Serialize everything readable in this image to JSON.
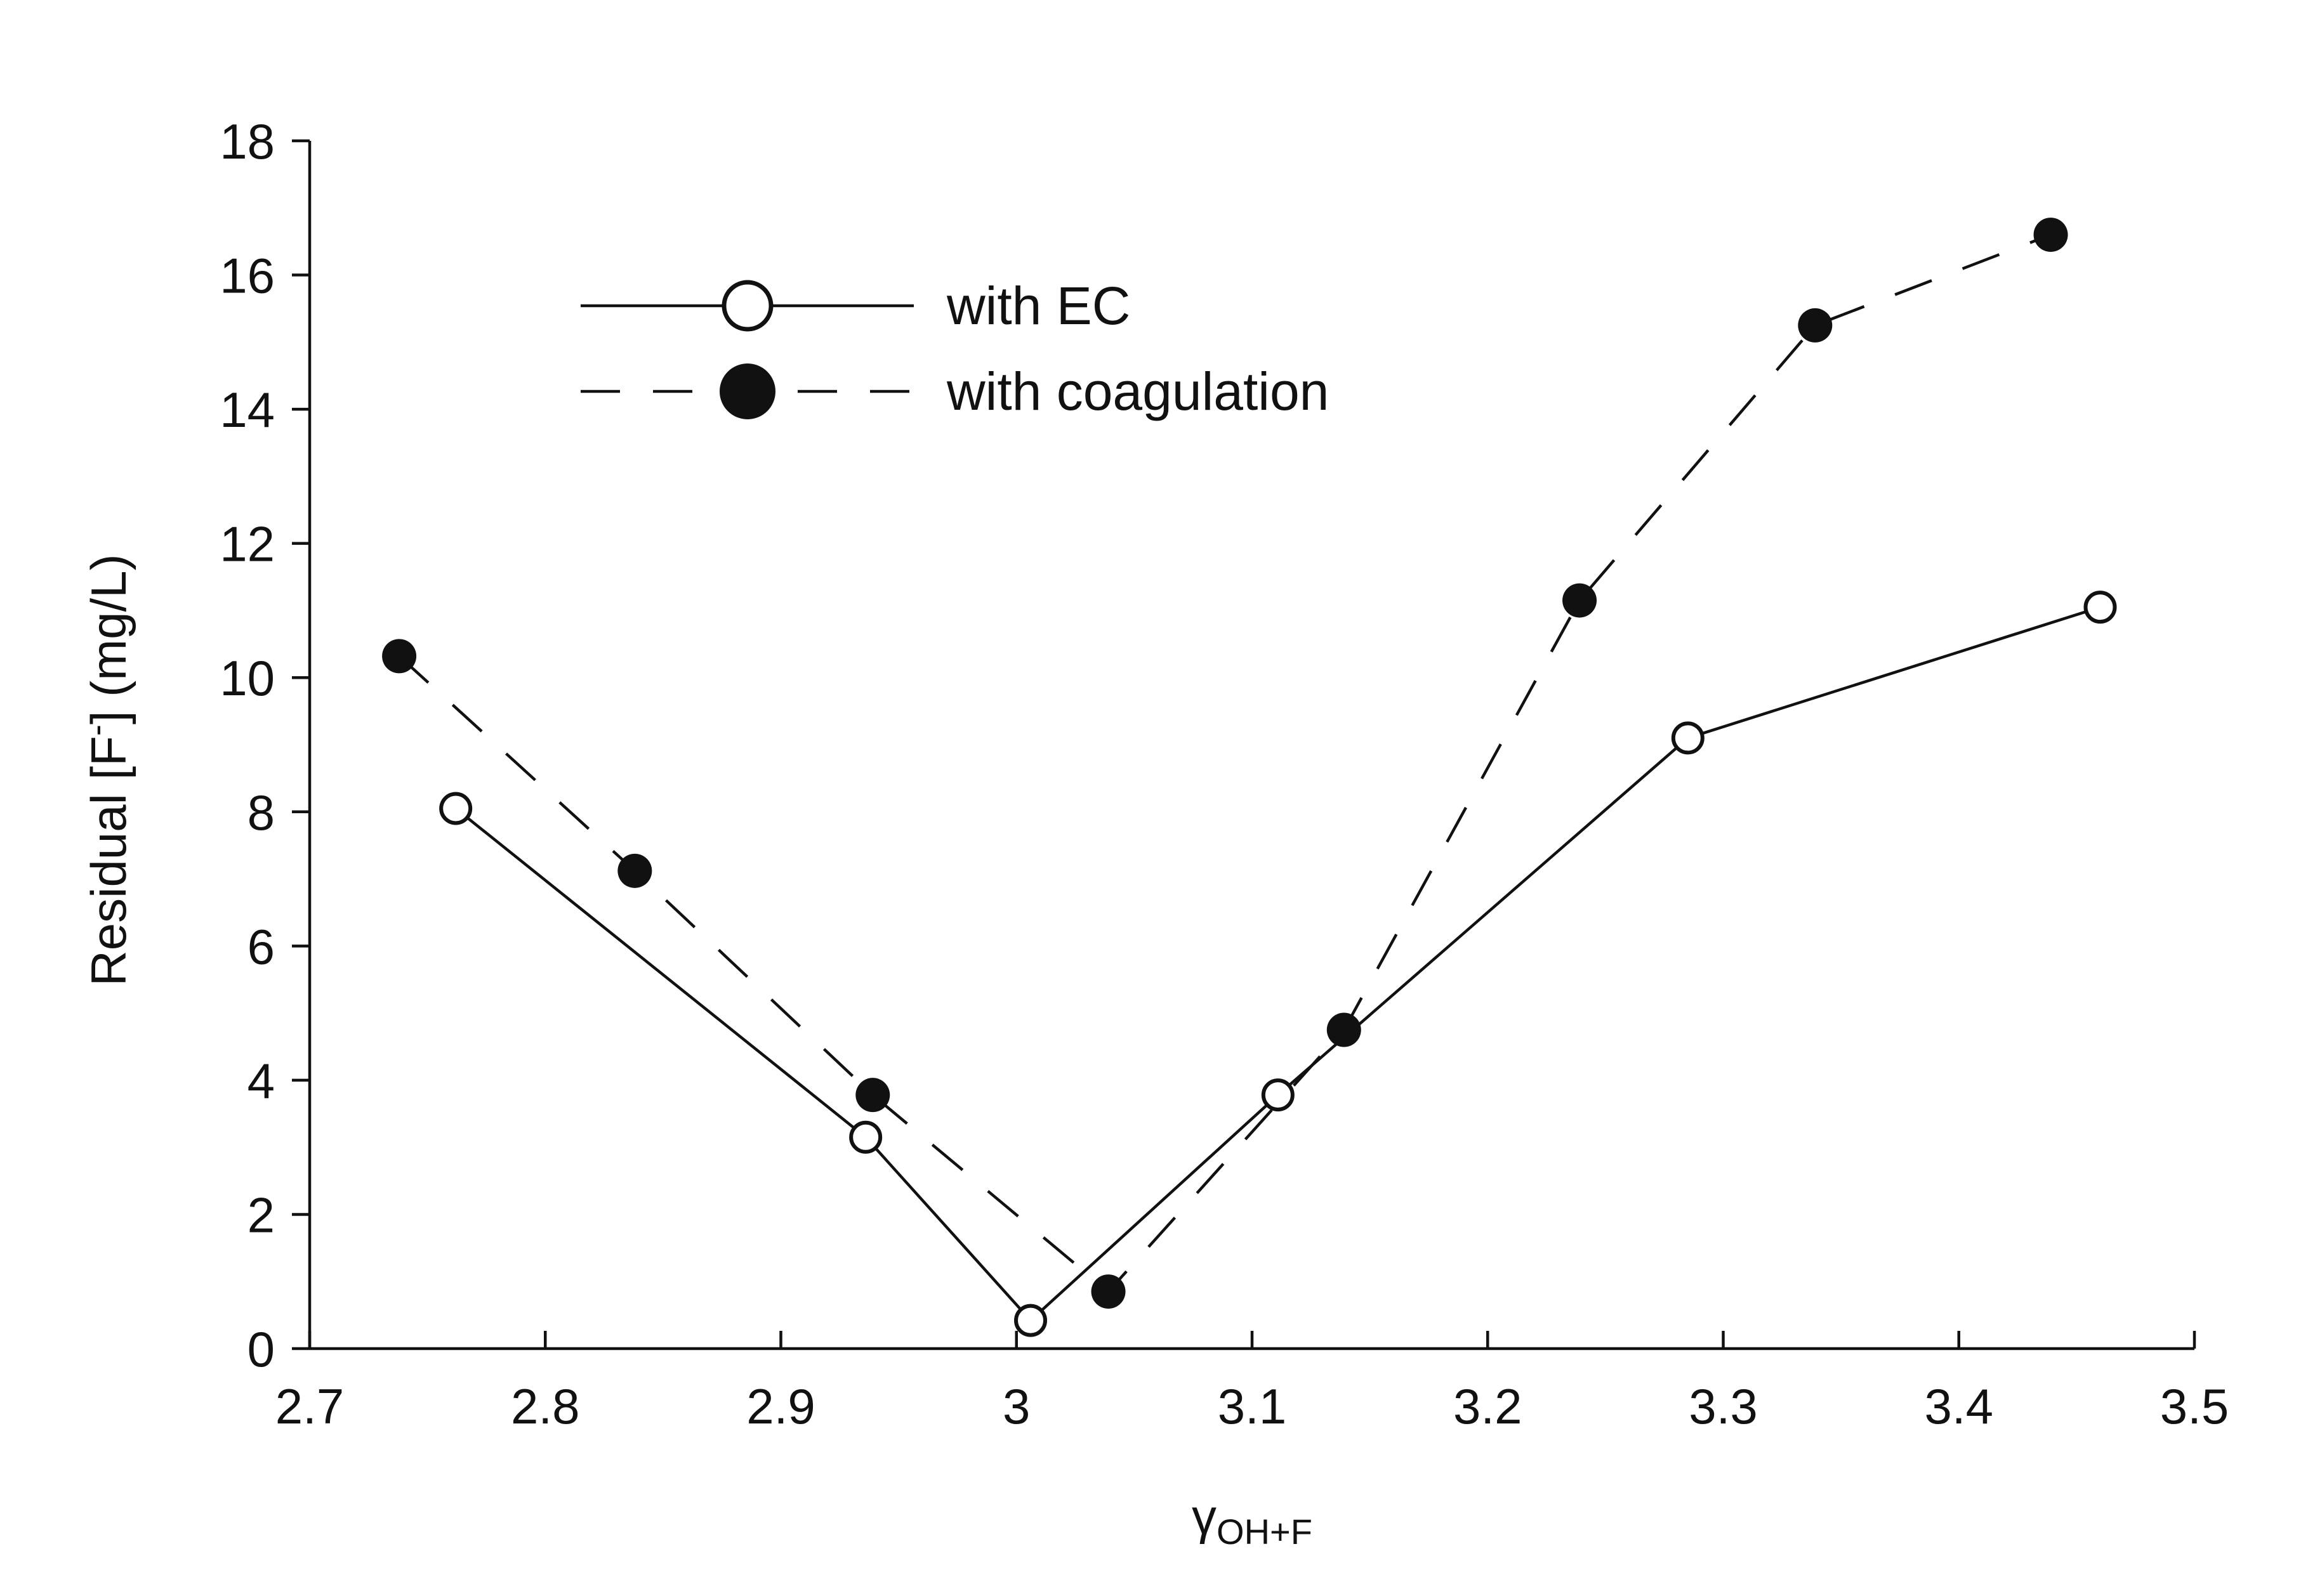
{
  "chart_data": {
    "type": "line",
    "title": "",
    "xlabel": "γ",
    "xlabel_subscript": "OH+F",
    "ylabel": "Residual [F",
    "ylabel_superscript": "-",
    "ylabel_suffix": "] (mg/L)",
    "xlim": [
      2.7,
      3.5
    ],
    "ylim": [
      0,
      18
    ],
    "xticks": [
      "2.7",
      "2.8",
      "2.9",
      "3",
      "3.1",
      "3.2",
      "3.3",
      "3.4",
      "3.5"
    ],
    "yticks": [
      "0",
      "2",
      "4",
      "6",
      "8",
      "10",
      "12",
      "14",
      "16",
      "18"
    ],
    "grid": false,
    "legend_position": "top-left",
    "series": [
      {
        "name": "with EC",
        "marker": "open-circle",
        "line": "solid",
        "color": "#111111",
        "x": [
          2.762,
          2.936,
          3.006,
          3.111,
          3.285,
          3.46
        ],
        "y": [
          8.05,
          3.15,
          0.42,
          3.78,
          9.1,
          11.05
        ]
      },
      {
        "name": "with coagulation",
        "marker": "filled-circle",
        "line": "dashed",
        "color": "#111111",
        "x": [
          2.738,
          2.838,
          2.939,
          3.039,
          3.139,
          3.239,
          3.339,
          3.439
        ],
        "y": [
          10.32,
          7.12,
          3.78,
          0.85,
          4.75,
          11.15,
          15.25,
          16.6
        ]
      }
    ]
  }
}
